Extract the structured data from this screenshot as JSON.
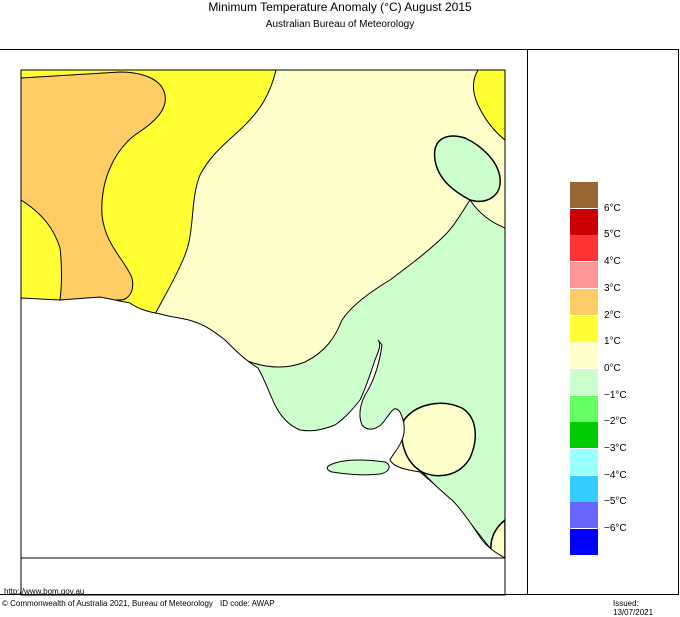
{
  "title": "Minimum Temperature Anomaly (°C)  August 2015",
  "subtitle": "Australian Bureau of Meteorology",
  "legend": {
    "entries": [
      {
        "color": "#996633",
        "label": "6°C"
      },
      {
        "color": "#cc0000",
        "label": "5°C"
      },
      {
        "color": "#ff3333",
        "label": "4°C"
      },
      {
        "color": "#ff9999",
        "label": "3°C"
      },
      {
        "color": "#ffcc66",
        "label": "2°C"
      },
      {
        "color": "#ffff33",
        "label": "1°C"
      },
      {
        "color": "#ffffcc",
        "label": "0°C"
      },
      {
        "color": "#ccffcc",
        "label": "−1°C"
      },
      {
        "color": "#66ff66",
        "label": "−2°C"
      },
      {
        "color": "#00cc00",
        "label": "−3°C"
      },
      {
        "color": "#99ffff",
        "label": "−4°C"
      },
      {
        "color": "#33ccff",
        "label": "−5°C"
      },
      {
        "color": "#6666ff",
        "label": "−6°C"
      },
      {
        "color": "#0000ff",
        "label": ""
      }
    ]
  },
  "footer": {
    "url": "http://www.bom.gov.au",
    "copyright": "© Commonwealth of Australia 2021, Bureau of Meteorology",
    "id_code": "ID code: AWAP",
    "issued": "Issued: 13/07/2021"
  }
}
